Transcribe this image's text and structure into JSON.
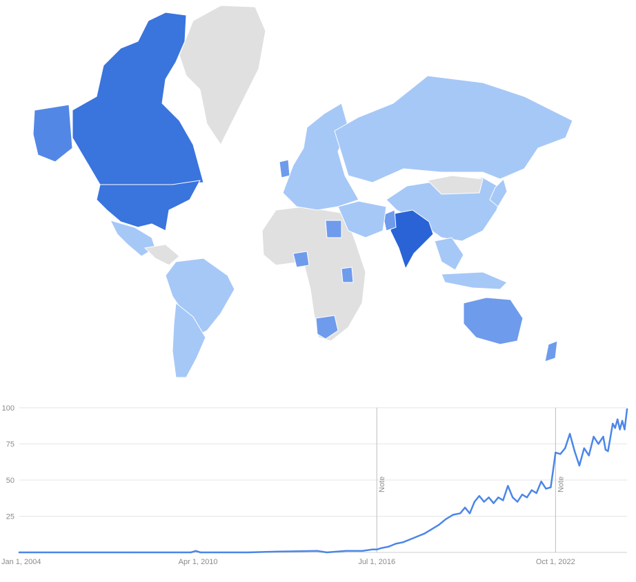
{
  "colors": {
    "no_data": "#e0e0e0",
    "low": "#a6c8f7",
    "mid_low": "#8ab3f2",
    "mid": "#6e9bec",
    "mid_high": "#5287e6",
    "high": "#3a74dd",
    "top": "#2a63d6",
    "border": "#ffffff",
    "line": "#4a86e8",
    "grid": "#e6e6e6",
    "axis_text": "#8a8a8a",
    "note_line": "#bdbdbd"
  },
  "map": {
    "regions": [
      {
        "name": "Canada",
        "level": "high"
      },
      {
        "name": "Alaska",
        "level": "mid_high"
      },
      {
        "name": "United States",
        "level": "high"
      },
      {
        "name": "Greenland",
        "level": "no_data"
      },
      {
        "name": "Mexico",
        "level": "low"
      },
      {
        "name": "Central America",
        "level": "no_data"
      },
      {
        "name": "Brazil",
        "level": "low"
      },
      {
        "name": "Argentina",
        "level": "low"
      },
      {
        "name": "Africa",
        "level": "no_data"
      },
      {
        "name": "Nigeria",
        "level": "mid"
      },
      {
        "name": "Kenya",
        "level": "mid"
      },
      {
        "name": "South Africa",
        "level": "mid"
      },
      {
        "name": "Egypt",
        "level": "mid"
      },
      {
        "name": "Europe",
        "level": "low"
      },
      {
        "name": "United Kingdom",
        "level": "mid"
      },
      {
        "name": "Russia",
        "level": "low"
      },
      {
        "name": "China",
        "level": "low"
      },
      {
        "name": "Mongolia",
        "level": "no_data"
      },
      {
        "name": "India",
        "level": "top"
      },
      {
        "name": "Pakistan",
        "level": "mid"
      },
      {
        "name": "Middle East",
        "level": "low"
      },
      {
        "name": "Southeast Asia",
        "level": "low"
      },
      {
        "name": "Indonesia",
        "level": "low"
      },
      {
        "name": "Australia",
        "level": "mid"
      },
      {
        "name": "New Zealand",
        "level": "mid"
      },
      {
        "name": "Japan",
        "level": "low"
      }
    ]
  },
  "chart_data": {
    "type": "line",
    "title": "",
    "xlabel": "",
    "ylabel": "",
    "x_start": "2004-01",
    "x_end": "2025-04",
    "x_ticks": [
      {
        "date": "2004-01",
        "label": "Jan 1, 2004"
      },
      {
        "date": "2010-04",
        "label": "Apr 1, 2010"
      },
      {
        "date": "2016-07",
        "label": "Jul 1, 2016"
      },
      {
        "date": "2022-10",
        "label": "Oct 1, 2022"
      }
    ],
    "ylim": [
      0,
      100
    ],
    "y_ticks": [
      {
        "value": 100,
        "label": "100"
      },
      {
        "value": 75,
        "label": "75"
      },
      {
        "value": 50,
        "label": "50"
      },
      {
        "value": 25,
        "label": "25"
      }
    ],
    "grid": true,
    "notes": [
      {
        "date": "2016-07",
        "label": "Note"
      },
      {
        "date": "2022-10",
        "label": "Note"
      }
    ],
    "series": [
      {
        "points": [
          [
            "2004-01",
            0
          ],
          [
            "2008-01",
            0
          ],
          [
            "2010-01",
            0
          ],
          [
            "2010-03",
            1
          ],
          [
            "2010-05",
            0
          ],
          [
            "2012-01",
            0
          ],
          [
            "2013-01",
            0.5
          ],
          [
            "2014-06",
            1
          ],
          [
            "2014-10",
            0
          ],
          [
            "2015-06",
            1
          ],
          [
            "2016-01",
            1
          ],
          [
            "2016-05",
            2
          ],
          [
            "2016-07",
            2
          ],
          [
            "2016-09",
            3
          ],
          [
            "2016-12",
            4
          ],
          [
            "2017-03",
            6
          ],
          [
            "2017-06",
            7
          ],
          [
            "2017-09",
            9
          ],
          [
            "2017-12",
            11
          ],
          [
            "2018-03",
            13
          ],
          [
            "2018-06",
            16
          ],
          [
            "2018-09",
            19
          ],
          [
            "2018-12",
            23
          ],
          [
            "2019-03",
            26
          ],
          [
            "2019-06",
            27
          ],
          [
            "2019-08",
            31
          ],
          [
            "2019-10",
            27
          ],
          [
            "2019-12",
            35
          ],
          [
            "2020-02",
            39
          ],
          [
            "2020-04",
            35
          ],
          [
            "2020-06",
            38
          ],
          [
            "2020-08",
            34
          ],
          [
            "2020-10",
            38
          ],
          [
            "2020-12",
            36
          ],
          [
            "2021-02",
            46
          ],
          [
            "2021-04",
            38
          ],
          [
            "2021-06",
            35
          ],
          [
            "2021-08",
            40
          ],
          [
            "2021-10",
            38
          ],
          [
            "2021-12",
            43
          ],
          [
            "2022-02",
            41
          ],
          [
            "2022-04",
            49
          ],
          [
            "2022-06",
            44
          ],
          [
            "2022-08",
            45
          ],
          [
            "2022-10",
            69
          ],
          [
            "2022-12",
            68
          ],
          [
            "2023-02",
            72
          ],
          [
            "2023-04",
            82
          ],
          [
            "2023-06",
            70
          ],
          [
            "2023-08",
            60
          ],
          [
            "2023-10",
            72
          ],
          [
            "2023-12",
            67
          ],
          [
            "2024-02",
            80
          ],
          [
            "2024-04",
            75
          ],
          [
            "2024-06",
            80
          ],
          [
            "2024-07",
            71
          ],
          [
            "2024-08",
            70
          ],
          [
            "2024-10",
            89
          ],
          [
            "2024-11",
            86
          ],
          [
            "2024-12",
            92
          ],
          [
            "2025-01",
            85
          ],
          [
            "2025-02",
            91
          ],
          [
            "2025-03",
            85
          ],
          [
            "2025-04",
            99
          ]
        ]
      }
    ]
  }
}
